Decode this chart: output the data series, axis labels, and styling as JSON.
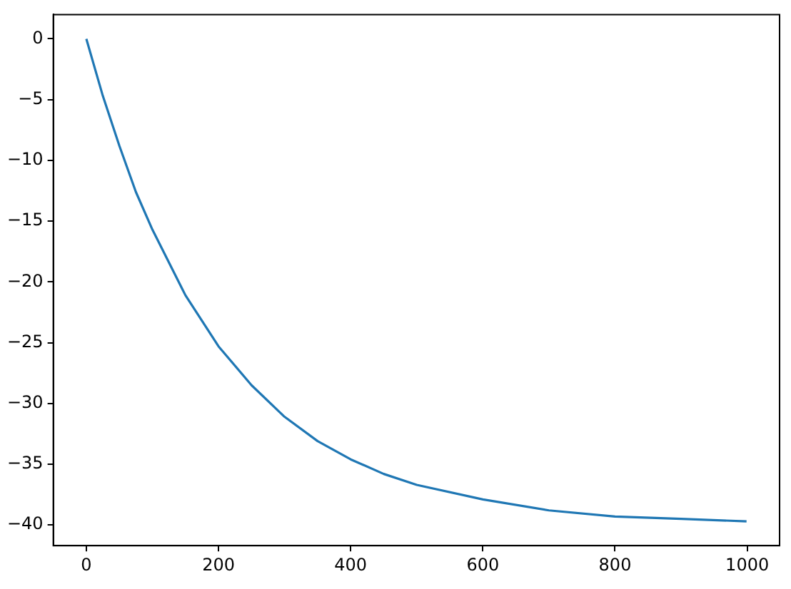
{
  "chart_data": {
    "type": "line",
    "x": [
      0,
      25,
      50,
      75,
      100,
      150,
      200,
      250,
      300,
      350,
      400,
      450,
      500,
      600,
      700,
      800,
      900,
      999
    ],
    "series": [
      {
        "color": "#1f77b4",
        "values": [
          0,
          -4.7,
          -8.8,
          -12.6,
          -15.7,
          -21.1,
          -25.3,
          -28.5,
          -31.1,
          -33.1,
          -34.6,
          -35.8,
          -36.7,
          -37.9,
          -38.8,
          -39.3,
          -39.5,
          -39.7
        ]
      }
    ],
    "xlim": [
      -50,
      1049
    ],
    "ylim": [
      -41.7,
      2
    ],
    "xticks": [
      0,
      200,
      400,
      600,
      800,
      1000
    ],
    "yticks": [
      0,
      -5,
      -10,
      -15,
      -20,
      -25,
      -30,
      -35,
      -40
    ],
    "grid": false,
    "legend": false,
    "marker": "none",
    "line_style": "solid"
  }
}
